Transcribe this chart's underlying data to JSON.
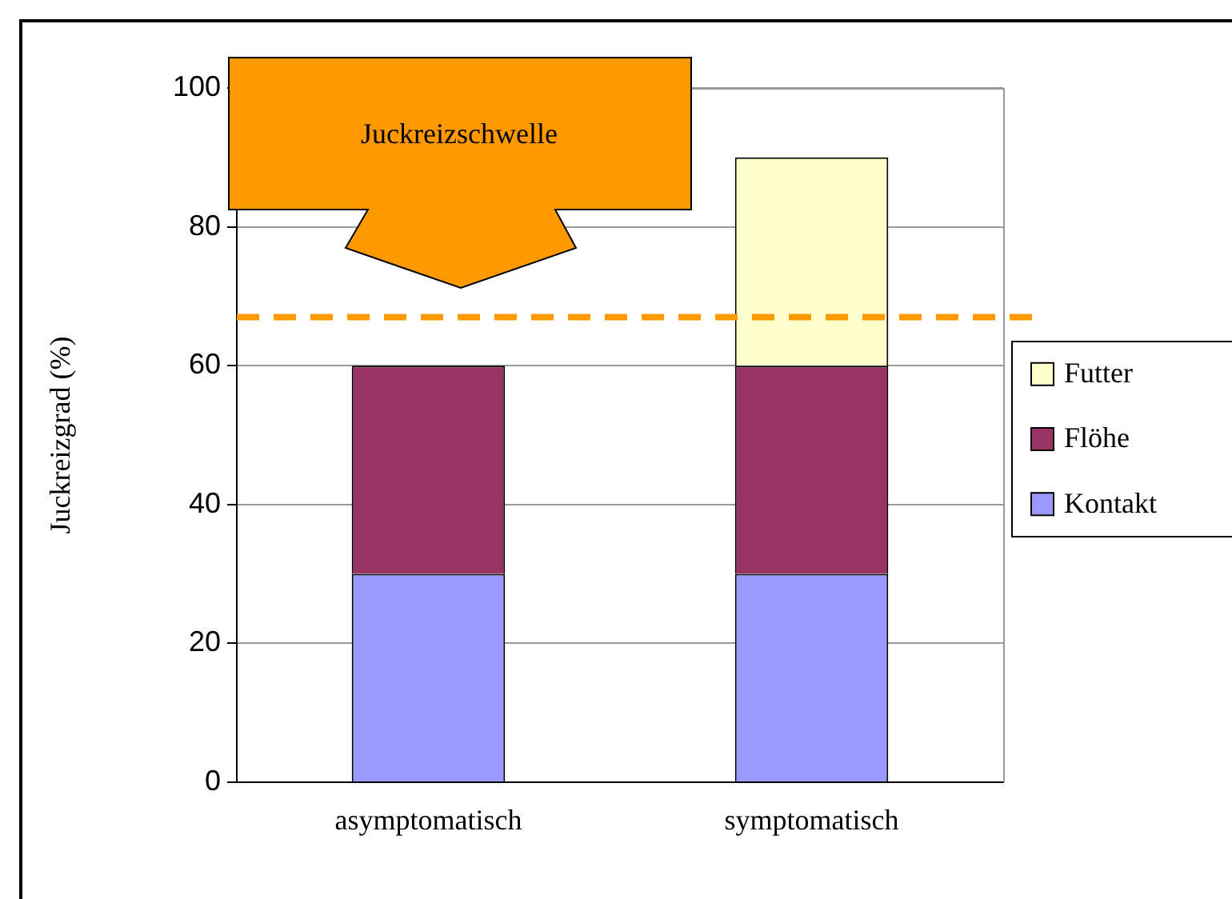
{
  "chart_data": {
    "type": "bar",
    "stacked": true,
    "ylabel": "Juckreizgrad (%)",
    "categories": [
      "asymptomatisch",
      "symptomatisch"
    ],
    "series": [
      {
        "name": "Kontakt",
        "color": "#9999ff",
        "values": [
          30,
          30
        ]
      },
      {
        "name": "Flöhe",
        "color": "#993366",
        "values": [
          30,
          30
        ]
      },
      {
        "name": "Futter",
        "color": "#ffffcc",
        "values": [
          null,
          30
        ]
      }
    ],
    "ylim": [
      0,
      100
    ],
    "yticks": [
      0,
      20,
      40,
      60,
      80,
      100
    ],
    "grid": "y",
    "legend": "right",
    "annotations": [
      "Juckreizschwelle"
    ],
    "ref_lines": [
      {
        "axis": "y",
        "value": 67,
        "color": "#ff9900",
        "line_style": "dashed"
      }
    ]
  }
}
